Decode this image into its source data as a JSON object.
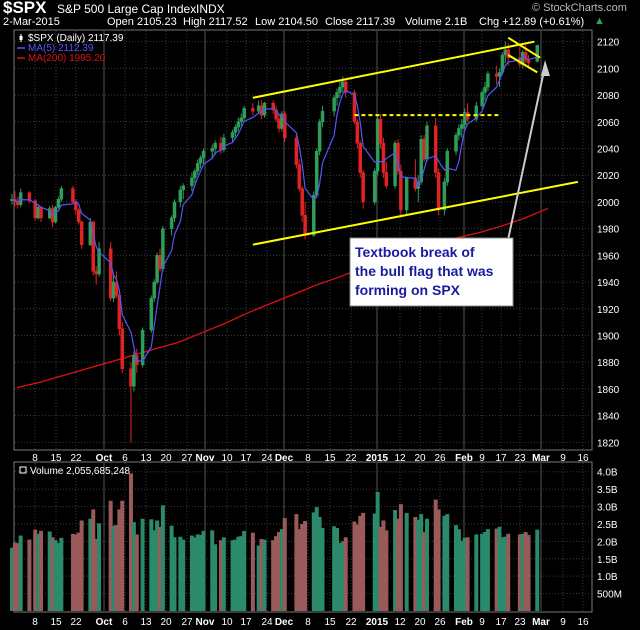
{
  "header": {
    "symbol": "$SPX",
    "name": "S&P 500 Large Cap Index",
    "exchange": "INDX",
    "date": "2-Mar-2015",
    "open": "Open 2105.23",
    "high": "High 2117.52",
    "low": "Low 2104.50",
    "close": "Close 2117.39",
    "volume": "Volume 2.1B",
    "change": "Chg +12.89 (+0.61%)",
    "change_arrow": "▲",
    "watermark": "© StockCharts.com"
  },
  "colors": {
    "up": "#2e9e5a",
    "down": "#e02424",
    "ma5": "#5555ff",
    "ma200": "#dd1111",
    "trendline": "#ffff00",
    "annotation_bg": "#ffffff",
    "annotation_text": "#1a1aa0",
    "vol_up": "#2a8a6a",
    "vol_down": "#9a5a5a",
    "grid": "#3a3a3a"
  },
  "chart_data": [
    {
      "type": "candlestick",
      "legend": [
        {
          "label": "$SPX (Daily) 2117.39",
          "color": "#ffffff",
          "icon": "candle-icon"
        },
        {
          "label": "MA(5) 2112.39",
          "color": "#5555ff"
        },
        {
          "label": "MA(200) 1995.20",
          "color": "#dd1111"
        }
      ],
      "y_ticks": [
        1820,
        1840,
        1860,
        1880,
        1900,
        1920,
        1940,
        1960,
        1980,
        2000,
        2020,
        2040,
        2060,
        2080,
        2100,
        2120
      ],
      "ylim": [
        1815,
        2128
      ],
      "x_labels": [
        "8",
        "15",
        "22",
        "Oct",
        "6",
        "13",
        "20",
        "27",
        "Nov",
        "10",
        "17",
        "24",
        "Dec",
        "8",
        "15",
        "22",
        "2015",
        "12",
        "20",
        "26",
        "Feb",
        "9",
        "17",
        "23",
        "Mar",
        "9",
        "16"
      ],
      "x_label_bold": [
        "Oct",
        "Nov",
        "Dec",
        "2015",
        "Feb",
        "Mar"
      ],
      "ohlc_start_date": "2014-09-02",
      "ohlc_end_date": "2015-03-02",
      "ohlc": [
        [
          2001,
          2006,
          1998,
          2002
        ],
        [
          2002,
          2008,
          1997,
          2000
        ],
        [
          2000,
          2004,
          1995,
          1998
        ],
        [
          1998,
          2010,
          1996,
          2007
        ],
        [
          2007,
          2008,
          1999,
          2001
        ],
        [
          2001,
          2002,
          1986,
          1988
        ],
        [
          1988,
          1998,
          1987,
          1996
        ],
        [
          1996,
          1997,
          1985,
          1988
        ],
        [
          1988,
          1997,
          1987,
          1995
        ],
        [
          1995,
          1998,
          1981,
          1985
        ],
        [
          1985,
          1997,
          1984,
          1996
        ],
        [
          1996,
          2004,
          1995,
          2002
        ],
        [
          2002,
          2012,
          2000,
          2010
        ],
        [
          2010,
          2012,
          1998,
          2000
        ],
        [
          2000,
          2002,
          1990,
          1994
        ],
        [
          1994,
          1995,
          1983,
          1985
        ],
        [
          1985,
          1986,
          1965,
          1968
        ],
        [
          1968,
          1988,
          1967,
          1985
        ],
        [
          1985,
          1986,
          1945,
          1948
        ],
        [
          1948,
          1952,
          1938,
          1946
        ],
        [
          1946,
          1970,
          1944,
          1965
        ],
        [
          1965,
          1970,
          1926,
          1928
        ],
        [
          1928,
          1946,
          1925,
          1940
        ],
        [
          1940,
          1948,
          1928,
          1930
        ],
        [
          1930,
          1932,
          1900,
          1905
        ],
        [
          1905,
          1910,
          1872,
          1875
        ],
        [
          1875,
          1880,
          1820,
          1862
        ],
        [
          1862,
          1888,
          1858,
          1885
        ],
        [
          1885,
          1890,
          1872,
          1878
        ],
        [
          1878,
          1906,
          1876,
          1904
        ],
        [
          1904,
          1930,
          1902,
          1928
        ],
        [
          1928,
          1942,
          1925,
          1940
        ],
        [
          1940,
          1962,
          1938,
          1960
        ],
        [
          1960,
          1965,
          1948,
          1950
        ],
        [
          1950,
          1982,
          1948,
          1980
        ],
        [
          1980,
          1990,
          1975,
          1988
        ],
        [
          1988,
          2002,
          1985,
          2000
        ],
        [
          2000,
          2012,
          1996,
          2009
        ],
        [
          2009,
          2014,
          2002,
          2012
        ],
        [
          2012,
          2022,
          2008,
          2018
        ],
        [
          2018,
          2025,
          2014,
          2023
        ],
        [
          2023,
          2032,
          2020,
          2029
        ],
        [
          2029,
          2035,
          2025,
          2033
        ],
        [
          2033,
          2040,
          2028,
          2038
        ],
        [
          2038,
          2043,
          2032,
          2040
        ],
        [
          2040,
          2046,
          2035,
          2044
        ],
        [
          2044,
          2049,
          2036,
          2039
        ],
        [
          2039,
          2051,
          2037,
          2048
        ],
        [
          2048,
          2054,
          2044,
          2052
        ],
        [
          2052,
          2058,
          2049,
          2056
        ],
        [
          2056,
          2063,
          2053,
          2060
        ],
        [
          2060,
          2066,
          2057,
          2063
        ],
        [
          2063,
          2072,
          2060,
          2070
        ],
        [
          2070,
          2074,
          2065,
          2068
        ],
        [
          2068,
          2076,
          2066,
          2072
        ],
        [
          2072,
          2076,
          2062,
          2065
        ],
        [
          2065,
          2075,
          2063,
          2074
        ],
        [
          2074,
          2076,
          2066,
          2069
        ],
        [
          2069,
          2072,
          2060,
          2062
        ],
        [
          2062,
          2066,
          2052,
          2055
        ],
        [
          2055,
          2068,
          2053,
          2066
        ],
        [
          2066,
          2068,
          2045,
          2048
        ],
        [
          2048,
          2050,
          2025,
          2028
        ],
        [
          2028,
          2032,
          2008,
          2010
        ],
        [
          2010,
          2012,
          1985,
          1990
        ],
        [
          1990,
          2000,
          1972,
          1975
        ],
        [
          1975,
          2008,
          1974,
          2005
        ],
        [
          2005,
          2040,
          2003,
          2038
        ],
        [
          2038,
          2062,
          2035,
          2060
        ],
        [
          2060,
          2072,
          2056,
          2068
        ],
        [
          2068,
          2080,
          2064,
          2078
        ],
        [
          2078,
          2085,
          2072,
          2082
        ],
        [
          2082,
          2090,
          2078,
          2086
        ],
        [
          2086,
          2094,
          2082,
          2090
        ],
        [
          2090,
          2092,
          2078,
          2082
        ],
        [
          2082,
          2084,
          2058,
          2060
        ],
        [
          2060,
          2062,
          2040,
          2044
        ],
        [
          2044,
          2046,
          2018,
          2022
        ],
        [
          2022,
          2024,
          1995,
          2000
        ],
        [
          2000,
          2025,
          1998,
          2023
        ],
        [
          2023,
          2064,
          2020,
          2062
        ],
        [
          2062,
          2066,
          2040,
          2044
        ],
        [
          2044,
          2048,
          2018,
          2022
        ],
        [
          2022,
          2030,
          2010,
          2012
        ],
        [
          2012,
          2046,
          2010,
          2044
        ],
        [
          2044,
          2047,
          2020,
          2023
        ],
        [
          2023,
          2028,
          1990,
          1994
        ],
        [
          1994,
          2019,
          1990,
          2018
        ],
        [
          2018,
          2032,
          2008,
          2010
        ],
        [
          2010,
          2020,
          2000,
          2015
        ],
        [
          2015,
          2050,
          2013,
          2047
        ],
        [
          2047,
          2050,
          2030,
          2032
        ],
        [
          2032,
          2060,
          2030,
          2057
        ],
        [
          2057,
          2063,
          2018,
          2022
        ],
        [
          2022,
          2025,
          1990,
          1994
        ],
        [
          1994,
          2018,
          1990,
          2015
        ],
        [
          2015,
          2040,
          2012,
          2038
        ],
        [
          2038,
          2052,
          2035,
          2050
        ],
        [
          2050,
          2058,
          2046,
          2055
        ],
        [
          2055,
          2062,
          2048,
          2058
        ],
        [
          2058,
          2070,
          2055,
          2067
        ],
        [
          2067,
          2074,
          2060,
          2062
        ],
        [
          2062,
          2075,
          2060,
          2072
        ],
        [
          2072,
          2084,
          2070,
          2082
        ],
        [
          2082,
          2090,
          2076,
          2086
        ],
        [
          2086,
          2098,
          2083,
          2096
        ],
        [
          2096,
          2102,
          2088,
          2094
        ],
        [
          2094,
          2100,
          2086,
          2097
        ],
        [
          2097,
          2112,
          2095,
          2110
        ],
        [
          2110,
          2120,
          2104,
          2114
        ],
        [
          2114,
          2119,
          2102,
          2108
        ],
        [
          2108,
          2116,
          2101,
          2103
        ],
        [
          2103,
          2114,
          2100,
          2112
        ],
        [
          2112,
          2118,
          2104,
          2106
        ],
        [
          2106,
          2110,
          2100,
          2104
        ],
        [
          2105.23,
          2117.52,
          2104.5,
          2117.39
        ]
      ],
      "ma200": [
        1861,
        1865,
        1870,
        1875,
        1880,
        1885,
        1890,
        1895,
        1902,
        1909,
        1917,
        1924,
        1931,
        1938,
        1944,
        1951,
        1957,
        1962,
        1968,
        1973,
        1977,
        1982,
        1988,
        1995.2
      ],
      "trendlines_price": [
        {
          "from": [
            "2014-11-24",
            2078
          ],
          "to": [
            "2015-03-01",
            2120
          ],
          "color": "#ffff00",
          "style": "solid"
        },
        {
          "from": [
            "2014-11-24",
            1968
          ],
          "to": [
            "2015-03-16",
            2015
          ],
          "color": "#ffff00",
          "style": "solid"
        },
        {
          "from": [
            "2014-12-29",
            2065
          ],
          "to": [
            "2015-02-17",
            2065
          ],
          "color": "#ffff00",
          "style": "dashed"
        },
        {
          "from": [
            "2015-02-20",
            2123
          ],
          "to": [
            "2015-03-03",
            2108
          ],
          "color": "#ffff00",
          "style": "solid"
        },
        {
          "from": [
            "2015-02-20",
            2110
          ],
          "to": [
            "2015-03-02",
            2097
          ],
          "color": "#ffff00",
          "style": "solid"
        }
      ],
      "annotation": {
        "lines": [
          "Textbook break of",
          "the bull flag that was",
          "forming on SPX"
        ]
      }
    },
    {
      "type": "bar",
      "legend": [
        {
          "label": "Volume 2,055,685,248",
          "color": "#ffffff"
        }
      ],
      "y_ticks": [
        "4.0B",
        "3.5B",
        "3.0B",
        "2.5B",
        "2.0B",
        "1.5B",
        "1.0B",
        "500M"
      ],
      "y_tick_values": [
        4.0,
        3.5,
        3.0,
        2.5,
        2.0,
        1.5,
        1.0,
        0.5
      ],
      "ylim": [
        0,
        4.25
      ],
      "unit": "billions of shares"
    }
  ]
}
